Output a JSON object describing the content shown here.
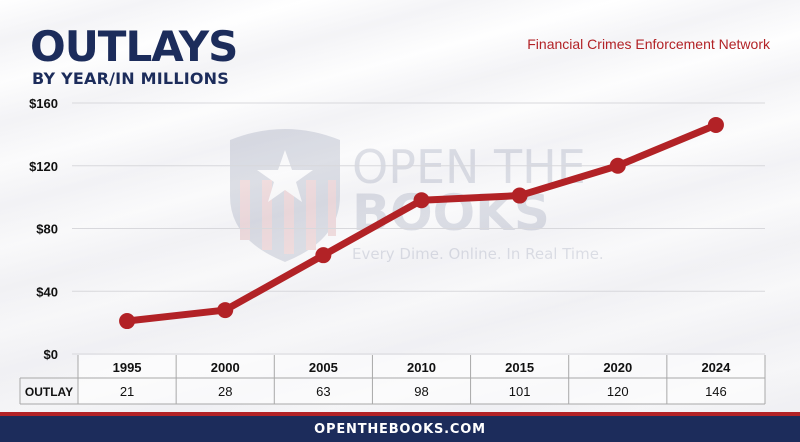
{
  "header": {
    "title": "OUTLAYS",
    "subtitle": "BY YEAR/IN MILLIONS",
    "agency": "Financial Crimes Enforcement Network"
  },
  "watermark": {
    "line1": "OPEN THE",
    "line2": "BOOKS",
    "tagline": "Every Dime. Online. In Real Time.",
    "icon": "shield-stars-stripes-icon"
  },
  "footer": {
    "label": "OPENTHEBOOKS.COM"
  },
  "colors": {
    "navy": "#1c2c5b",
    "red": "#b22226"
  },
  "chart_data": {
    "type": "line",
    "title": "OUTLAYS",
    "subtitle": "BY YEAR/IN MILLIONS",
    "categories": [
      "1995",
      "2000",
      "2005",
      "2010",
      "2015",
      "2020",
      "2024"
    ],
    "series": [
      {
        "values": [
          21,
          28,
          63,
          98,
          101,
          120,
          146
        ],
        "color": "#b22226"
      }
    ],
    "ylim": [
      0,
      160
    ],
    "yticks": [
      0,
      40,
      80,
      120,
      160
    ],
    "ytick_labels": [
      "$0",
      "$40",
      "$80",
      "$120",
      "$160"
    ],
    "grid": true,
    "table": {
      "row_label": "OUTLAY",
      "values": [
        "21",
        "28",
        "63",
        "98",
        "101",
        "120",
        "146"
      ]
    }
  }
}
